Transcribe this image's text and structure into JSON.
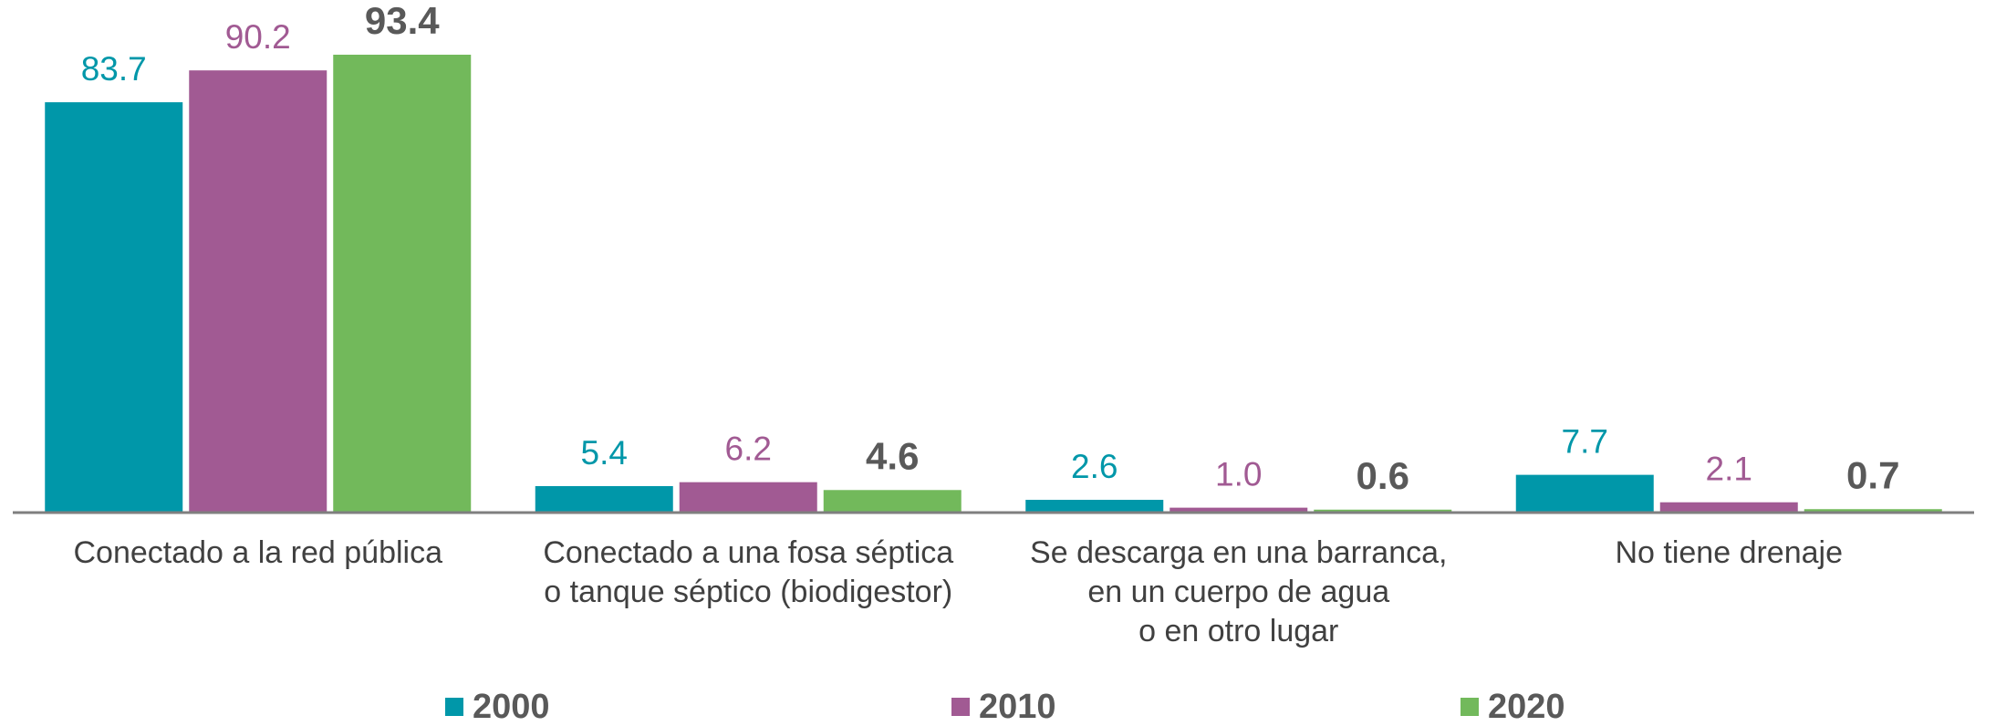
{
  "chart_data": {
    "type": "bar",
    "categories": [
      [
        "Conectado a la red pública"
      ],
      [
        "Conectado a una fosa séptica",
        "o tanque séptico (biodigestor)"
      ],
      [
        "Se descarga en una barranca,",
        "en un cuerpo de agua",
        "o en otro lugar"
      ],
      [
        "No tiene drenaje"
      ]
    ],
    "series": [
      {
        "name": "2000",
        "color": "#0097a9",
        "label_color": "#0097a9",
        "label_weight": "normal",
        "values": [
          83.7,
          5.4,
          2.6,
          7.7
        ],
        "value_labels": [
          "83.7",
          "5.4",
          "2.6",
          "7.7"
        ]
      },
      {
        "name": "2010",
        "color": "#a15a93",
        "label_color": "#a15a93",
        "label_weight": "normal",
        "values": [
          90.2,
          6.2,
          1.0,
          2.1
        ],
        "value_labels": [
          "90.2",
          "6.2",
          "1.0",
          "2.1"
        ]
      },
      {
        "name": "2020",
        "color": "#72b95b",
        "label_color": "#595959",
        "label_weight": "bold",
        "values": [
          93.4,
          4.6,
          0.6,
          0.7
        ],
        "value_labels": [
          "93.4",
          "4.6",
          "0.6",
          "0.7"
        ]
      }
    ],
    "ylim": [
      0,
      100
    ],
    "legend": "bottom"
  }
}
